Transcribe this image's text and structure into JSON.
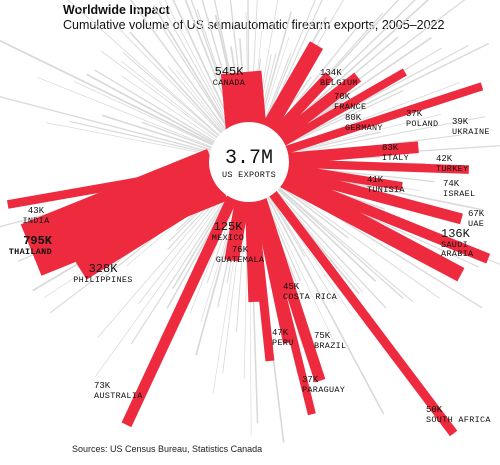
{
  "title": "Worldwide Impact",
  "subtitle": "Cumulative volume of US semiautomatic firearm exports, 2005–2022",
  "source": "Sources: US Census Bureau, Statistics Canada",
  "colors": {
    "highlight": "#ee2a3f",
    "background_rays": "#d9d9d9",
    "text": "#111111"
  },
  "chart_data": {
    "type": "radial-bar",
    "center": {
      "value": "3.7M",
      "label": "US EXPORTS"
    },
    "series": [
      {
        "name": "CANADA",
        "label": "545K",
        "value": 545000
      },
      {
        "name": "BELGIUM",
        "label": "134K",
        "value": 134000
      },
      {
        "name": "FRANCE",
        "label": "70K",
        "value": 70000
      },
      {
        "name": "GERMANY",
        "label": "80K",
        "value": 80000
      },
      {
        "name": "POLAND",
        "label": "37K",
        "value": 37000
      },
      {
        "name": "UKRAINE",
        "label": "39K",
        "value": 39000
      },
      {
        "name": "ITALY",
        "label": "83K",
        "value": 83000
      },
      {
        "name": "TURKEY",
        "label": "42K",
        "value": 42000
      },
      {
        "name": "TUNISIA",
        "label": "41K",
        "value": 41000
      },
      {
        "name": "ISRAEL",
        "label": "74K",
        "value": 74000
      },
      {
        "name": "UAE",
        "label": "67K",
        "value": 67000
      },
      {
        "name": "SAUDI ARABIA",
        "label": "136K",
        "value": 136000
      },
      {
        "name": "SOUTH AFRICA",
        "label": "50K",
        "value": 50000
      },
      {
        "name": "PARAGUAY",
        "label": "37K",
        "value": 37000
      },
      {
        "name": "BRAZIL",
        "label": "75K",
        "value": 75000
      },
      {
        "name": "COSTA RICA",
        "label": "45K",
        "value": 45000
      },
      {
        "name": "PERU",
        "label": "47K",
        "value": 47000
      },
      {
        "name": "GUATEMALA",
        "label": "76K",
        "value": 76000
      },
      {
        "name": "MEXICO",
        "label": "125K",
        "value": 125000
      },
      {
        "name": "AUSTRALIA",
        "label": "73K",
        "value": 73000
      },
      {
        "name": "PHILIPPINES",
        "label": "328K",
        "value": 328000
      },
      {
        "name": "THAILAND",
        "label": "795K",
        "value": 795000
      },
      {
        "name": "INDIA",
        "label": "43K",
        "value": 43000
      }
    ]
  }
}
